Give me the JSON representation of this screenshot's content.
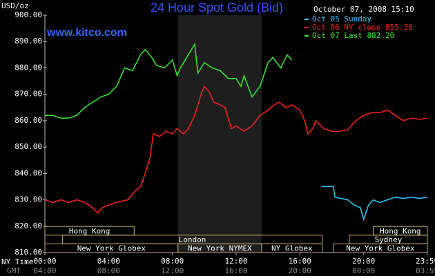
{
  "chart_data": {
    "type": "line",
    "title": "24 Hour Spot Gold (Bid)",
    "timestamp": "October 07, 2008 15:10",
    "watermark": "www.kitco.com",
    "y_label": "USD/oz",
    "x_row_labels": [
      "NY Time",
      "GMT"
    ],
    "xlim": [
      0,
      24
    ],
    "xticks": [
      {
        "value": 0,
        "label": "00:00"
      },
      {
        "value": 4,
        "label": "04:00"
      },
      {
        "value": 8,
        "label": "08:00"
      },
      {
        "value": 12,
        "label": "12:00"
      },
      {
        "value": 16,
        "label": "16:00"
      },
      {
        "value": 20,
        "label": "20:00"
      },
      {
        "value": 23.98,
        "label": "23:59"
      }
    ],
    "gmt_labels": [
      "04:00",
      "08:00",
      "12:00",
      "16:00",
      "20:00",
      "00:00",
      "03:59"
    ],
    "ylim": [
      810,
      900
    ],
    "yticks": [
      {
        "value": 810,
        "label": "810.00"
      },
      {
        "value": 820,
        "label": "820.00"
      },
      {
        "value": 830,
        "label": "830.00"
      },
      {
        "value": 840,
        "label": "840.00"
      },
      {
        "value": 850,
        "label": "850.00"
      },
      {
        "value": 860,
        "label": "860.00"
      },
      {
        "value": 870,
        "label": "870.00"
      },
      {
        "value": 880,
        "label": "880.00"
      },
      {
        "value": 890,
        "label": "890.00"
      },
      {
        "value": 900,
        "label": "900.00"
      }
    ],
    "grid": false,
    "highlight_x": [
      8.35,
      13.6
    ],
    "sessions": [
      {
        "label": "Hong Kong",
        "start": 0,
        "end": 5.6,
        "row": 0
      },
      {
        "label": "Hong Kong",
        "start": 20.6,
        "end": 24,
        "row": 0
      },
      {
        "label": "London",
        "start": 1.1,
        "end": 17.4,
        "row": 1
      },
      {
        "label": "Sydney",
        "start": 19.1,
        "end": 24,
        "row": 1
      },
      {
        "label": "New York Globex",
        "start": 0,
        "end": 8.35,
        "row": 2
      },
      {
        "label": "New York NYMEX",
        "start": 8.35,
        "end": 13.6,
        "row": 2
      },
      {
        "label": "NY Globex",
        "start": 13.6,
        "end": 17.4,
        "row": 2
      },
      {
        "label": "New York Globex",
        "start": 18.1,
        "end": 24,
        "row": 2
      }
    ],
    "series": [
      {
        "name": "Oct 05 Sunday",
        "color": "#33ccff",
        "x": [
          17.35,
          18.1,
          18.2,
          18.6,
          19.0,
          19.4,
          19.8,
          20.0,
          20.3,
          20.6,
          21.0,
          21.5,
          22.0,
          22.5,
          23.0,
          23.5,
          24.0
        ],
        "values": [
          835,
          835,
          831,
          830.5,
          830,
          828,
          827,
          822.5,
          828,
          830,
          829,
          830,
          831,
          830.5,
          831,
          830.5,
          831
        ]
      },
      {
        "name": "Oct 06 NY close 855.30",
        "color": "#ff2020",
        "x": [
          0,
          0.5,
          1.0,
          1.5,
          2.0,
          2.5,
          3.0,
          3.3,
          3.6,
          4.0,
          4.5,
          5.2,
          5.6,
          6.0,
          6.3,
          6.6,
          6.8,
          7.2,
          7.6,
          8.0,
          8.3,
          8.7,
          9.0,
          9.4,
          9.8,
          10.0,
          10.3,
          10.6,
          11.0,
          11.3,
          11.7,
          12.0,
          12.5,
          13.0,
          13.5,
          14.0,
          14.4,
          14.7,
          15.1,
          15.5,
          16.0,
          16.3,
          16.5,
          16.8,
          17.0,
          17.5,
          18.0,
          18.5,
          19.0,
          19.5,
          20.0,
          20.5,
          21.0,
          21.5,
          22.0,
          22.5,
          23.0,
          23.5,
          24.0
        ],
        "values": [
          830,
          829,
          830,
          829,
          830,
          829,
          827,
          825,
          827,
          828,
          829,
          830,
          833,
          835,
          840,
          846,
          855,
          854,
          856,
          855,
          857,
          855,
          857,
          862,
          870,
          873,
          871,
          867,
          866,
          865,
          857,
          858,
          856,
          858,
          862,
          864,
          866,
          867,
          865,
          866,
          864,
          860,
          855,
          857,
          860,
          857,
          856,
          856,
          856.5,
          860,
          862,
          863,
          863,
          864,
          862,
          860,
          861,
          860.5,
          861
        ]
      },
      {
        "name": "Oct 07 Last 882.20",
        "color": "#33ee33",
        "x": [
          0,
          0.5,
          1.0,
          1.5,
          2.0,
          2.5,
          3.0,
          3.5,
          4.0,
          4.5,
          5.0,
          5.5,
          6.0,
          6.3,
          6.7,
          7.0,
          7.5,
          8.0,
          8.3,
          8.5,
          9.0,
          9.4,
          9.6,
          10.0,
          10.5,
          11.0,
          11.5,
          12.0,
          12.3,
          12.5,
          13.0,
          13.5,
          14.0,
          14.3,
          14.8,
          15.2,
          15.5
        ],
        "values": [
          862,
          862,
          861,
          861,
          862,
          865,
          867,
          869,
          870,
          873,
          880,
          879,
          885,
          887,
          884,
          881,
          880,
          883,
          877,
          880,
          885,
          889,
          878,
          882,
          880,
          879,
          876,
          876,
          873,
          877,
          869,
          873,
          882,
          884,
          880,
          885,
          883
        ]
      }
    ]
  }
}
